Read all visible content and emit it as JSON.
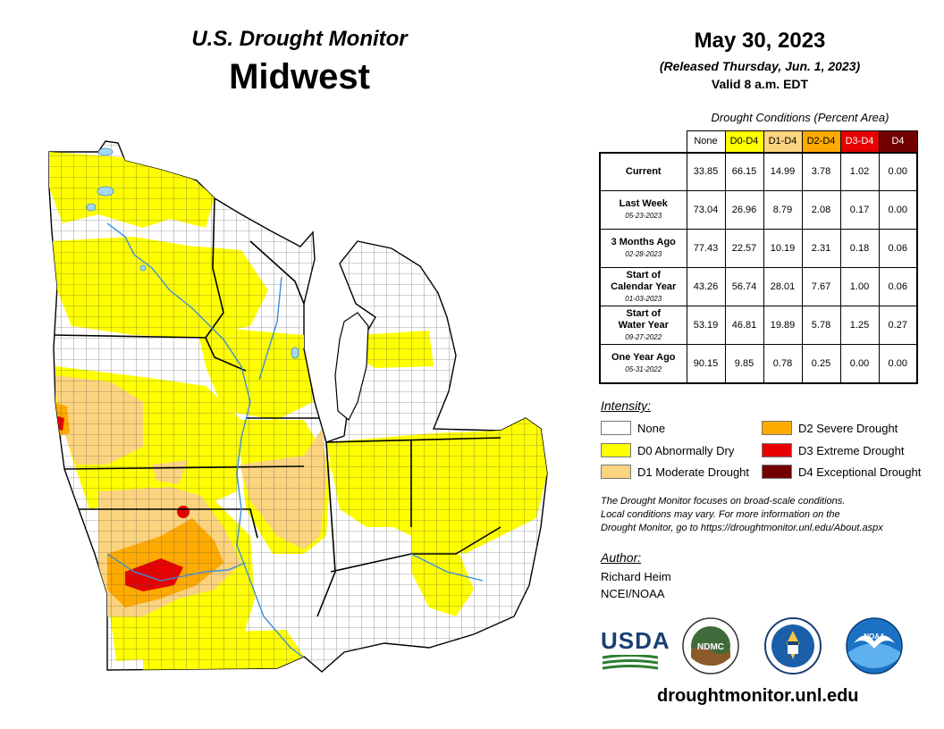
{
  "header": {
    "title": "U.S. Drought Monitor",
    "region": "Midwest"
  },
  "date": {
    "map_date": "May 30, 2023",
    "released": "(Released Thursday, Jun. 1, 2023)",
    "valid": "Valid 8 a.m. EDT"
  },
  "table": {
    "caption": "Drought Conditions (Percent Area)",
    "columns": [
      {
        "label": "None",
        "color": "#ffffff",
        "text_color": "#000000"
      },
      {
        "label": "D0-D4",
        "color": "#ffff00",
        "text_color": "#000000"
      },
      {
        "label": "D1-D4",
        "color": "#fcd37f",
        "text_color": "#000000"
      },
      {
        "label": "D2-D4",
        "color": "#ffaa00",
        "text_color": "#000000"
      },
      {
        "label": "D3-D4",
        "color": "#e60000",
        "text_color": "#ffffff"
      },
      {
        "label": "D4",
        "color": "#730000",
        "text_color": "#ffffff"
      }
    ],
    "rows": [
      {
        "label": "Current",
        "label2": "",
        "date": "",
        "values": [
          "33.85",
          "66.15",
          "14.99",
          "3.78",
          "1.02",
          "0.00"
        ]
      },
      {
        "label": "Last Week",
        "label2": "",
        "date": "05-23-2023",
        "values": [
          "73.04",
          "26.96",
          "8.79",
          "2.08",
          "0.17",
          "0.00"
        ]
      },
      {
        "label": "3 Months Ago",
        "label2": "",
        "date": "02-28-2023",
        "values": [
          "77.43",
          "22.57",
          "10.19",
          "2.31",
          "0.18",
          "0.06"
        ]
      },
      {
        "label": "Start of",
        "label2": "Calendar Year",
        "date": "01-03-2023",
        "values": [
          "43.26",
          "56.74",
          "28.01",
          "7.67",
          "1.00",
          "0.06"
        ]
      },
      {
        "label": "Start of",
        "label2": "Water Year",
        "date": "09-27-2022",
        "values": [
          "53.19",
          "46.81",
          "19.89",
          "5.78",
          "1.25",
          "0.27"
        ]
      },
      {
        "label": "One Year Ago",
        "label2": "",
        "date": "05-31-2022",
        "values": [
          "90.15",
          "9.85",
          "0.78",
          "0.25",
          "0.00",
          "0.00"
        ]
      }
    ]
  },
  "legend": {
    "title": "Intensity:",
    "items": [
      {
        "label": "None",
        "color": "#ffffff"
      },
      {
        "label": "D0 Abnormally Dry",
        "color": "#ffff00"
      },
      {
        "label": "D1 Moderate Drought",
        "color": "#fcd37f"
      },
      {
        "label": "D2 Severe Drought",
        "color": "#ffaa00"
      },
      {
        "label": "D3 Extreme Drought",
        "color": "#e60000"
      },
      {
        "label": "D4 Exceptional Drought",
        "color": "#730000"
      }
    ]
  },
  "disclaimer": {
    "line1": "The Drought Monitor focuses on broad-scale conditions.",
    "line2": "Local conditions may vary. For more information on the",
    "line3": "Drought Monitor, go to https://droughtmonitor.unl.edu/About.aspx"
  },
  "author": {
    "title": "Author:",
    "name": "Richard Heim",
    "org": "NCEI/NOAA"
  },
  "logos": {
    "usda": "USDA",
    "ndmc": "NDMC",
    "noaa": "NOAA"
  },
  "footer": {
    "url": "droughtmonitor.unl.edu"
  }
}
